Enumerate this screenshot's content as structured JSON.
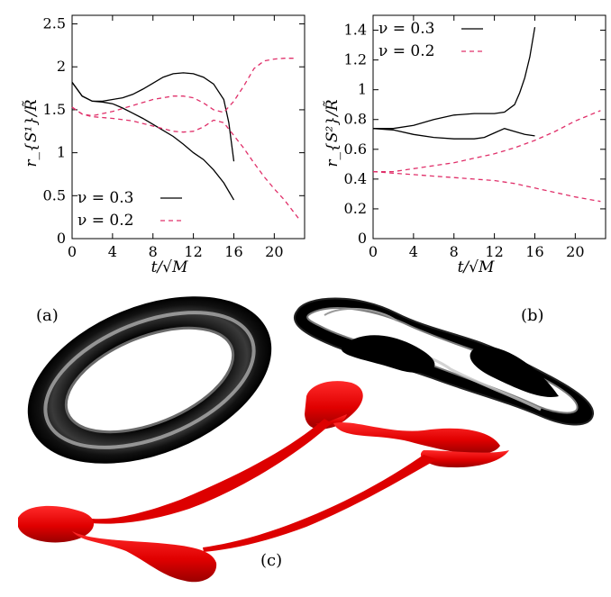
{
  "chart_data": [
    {
      "type": "line",
      "panel": "left",
      "xlabel": "t/√M",
      "ylabel": "r_{S¹}/R̃",
      "xlim": [
        0,
        23
      ],
      "ylim": [
        0,
        2.6
      ],
      "xticks": [
        "0",
        "4",
        "8",
        "12",
        "16",
        "20"
      ],
      "yticks": [
        "0",
        "0.5",
        "1",
        "1.5",
        "2",
        "2.5"
      ],
      "legend_position": "bottom-left",
      "series": [
        {
          "name": "ν = 0.3",
          "style": "solid",
          "color": "#000000",
          "x": [
            0,
            1,
            2,
            3,
            4,
            5,
            6,
            7,
            8,
            9,
            10,
            11,
            12,
            13,
            14,
            15,
            15.5,
            16
          ],
          "y": [
            1.82,
            1.66,
            1.6,
            1.6,
            1.62,
            1.64,
            1.68,
            1.74,
            1.81,
            1.88,
            1.92,
            1.93,
            1.92,
            1.88,
            1.8,
            1.62,
            1.35,
            0.9
          ]
        },
        {
          "name": "",
          "style": "solid",
          "color": "#000000",
          "x": [
            0,
            1,
            2,
            3,
            4,
            5,
            6,
            7,
            8,
            9,
            10,
            11,
            12,
            13,
            14,
            15,
            16
          ],
          "y": [
            1.82,
            1.66,
            1.6,
            1.59,
            1.57,
            1.52,
            1.46,
            1.4,
            1.33,
            1.26,
            1.19,
            1.1,
            1.0,
            0.92,
            0.8,
            0.65,
            0.45
          ]
        },
        {
          "name": "ν = 0.2",
          "style": "dashed",
          "color": "#e0306a",
          "x": [
            0,
            1,
            2,
            4,
            6,
            8,
            10,
            11,
            12,
            13,
            14,
            15,
            16,
            17,
            18,
            19,
            20,
            21,
            22
          ],
          "y": [
            1.53,
            1.45,
            1.43,
            1.48,
            1.55,
            1.62,
            1.66,
            1.66,
            1.64,
            1.58,
            1.5,
            1.47,
            1.6,
            1.78,
            1.98,
            2.07,
            2.09,
            2.1,
            2.1
          ]
        },
        {
          "name": "",
          "style": "dashed",
          "color": "#e0306a",
          "x": [
            0,
            1,
            2,
            4,
            6,
            8,
            10,
            11,
            12,
            13,
            14,
            15,
            16,
            17,
            18,
            19,
            20,
            21,
            22.5
          ],
          "y": [
            1.53,
            1.45,
            1.42,
            1.4,
            1.37,
            1.31,
            1.25,
            1.24,
            1.25,
            1.3,
            1.38,
            1.35,
            1.2,
            1.05,
            0.88,
            0.72,
            0.58,
            0.45,
            0.22
          ]
        }
      ]
    },
    {
      "type": "line",
      "panel": "right",
      "xlabel": "t/√M",
      "ylabel": "r_{S²}/R̃",
      "xlim": [
        0,
        23
      ],
      "ylim": [
        0,
        1.5
      ],
      "xticks": [
        "0",
        "4",
        "8",
        "12",
        "16",
        "20"
      ],
      "yticks": [
        "0",
        "0.2",
        "0.4",
        "0.6",
        "0.8",
        "1",
        "1.2",
        "1.4"
      ],
      "legend_position": "top-left",
      "series": [
        {
          "name": "ν = 0.3",
          "style": "solid",
          "color": "#000000",
          "x": [
            0,
            2,
            4,
            6,
            8,
            10,
            12,
            13,
            14,
            14.5,
            15,
            15.5,
            16
          ],
          "y": [
            0.74,
            0.74,
            0.76,
            0.8,
            0.83,
            0.84,
            0.84,
            0.85,
            0.9,
            0.98,
            1.08,
            1.22,
            1.42
          ]
        },
        {
          "name": "",
          "style": "solid",
          "color": "#000000",
          "x": [
            0,
            2,
            4,
            6,
            8,
            10,
            11,
            12,
            13,
            14,
            15,
            16
          ],
          "y": [
            0.74,
            0.73,
            0.7,
            0.68,
            0.67,
            0.67,
            0.68,
            0.71,
            0.74,
            0.72,
            0.7,
            0.69
          ]
        },
        {
          "name": "ν = 0.2",
          "style": "dashed",
          "color": "#e0306a",
          "x": [
            0,
            2,
            4,
            6,
            8,
            10,
            12,
            14,
            16,
            18,
            20,
            22.5
          ],
          "y": [
            0.45,
            0.45,
            0.47,
            0.49,
            0.51,
            0.54,
            0.57,
            0.61,
            0.66,
            0.72,
            0.79,
            0.86
          ]
        },
        {
          "name": "",
          "style": "dashed",
          "color": "#e0306a",
          "x": [
            0,
            2,
            4,
            6,
            8,
            10,
            12,
            14,
            16,
            18,
            20,
            22.5
          ],
          "y": [
            0.45,
            0.44,
            0.43,
            0.42,
            0.41,
            0.4,
            0.39,
            0.37,
            0.34,
            0.31,
            0.28,
            0.25
          ]
        }
      ]
    }
  ],
  "panel_labels": {
    "a": "(a)",
    "b": "(b)",
    "c": "(c)"
  },
  "shape_colors": {
    "torus": "#111111",
    "highlight": "#d9d9d9",
    "ring": "#e60000"
  }
}
